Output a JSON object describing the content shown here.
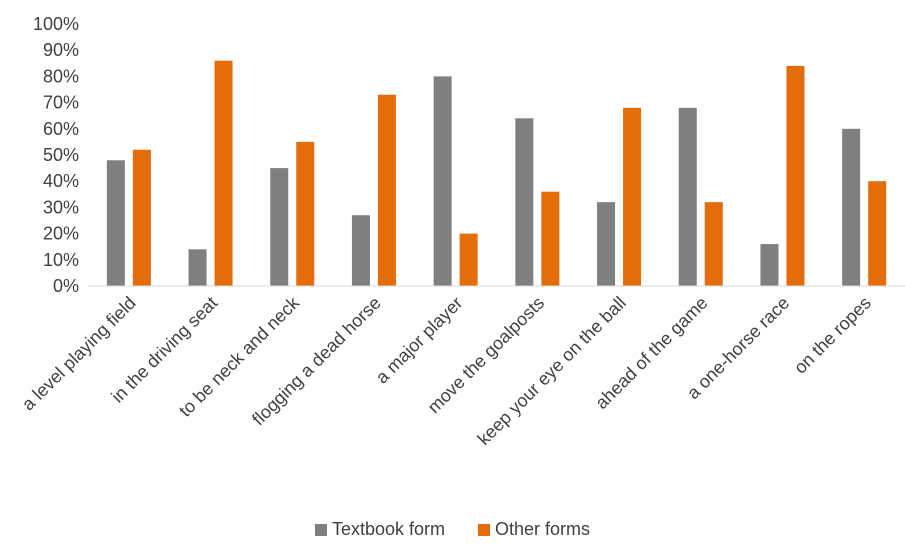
{
  "chart_data": {
    "type": "bar",
    "categories": [
      "a level playing field",
      "in the driving seat",
      "to be neck and neck",
      "flogging a dead horse",
      "a major player",
      "move the goalposts",
      "keep your eye on the ball",
      "ahead of the game",
      "a one-horse race",
      "on the ropes"
    ],
    "series": [
      {
        "name": "Textbook form",
        "color": "#7f7f7f",
        "values": [
          48,
          14,
          45,
          27,
          80,
          64,
          32,
          68,
          16,
          60
        ]
      },
      {
        "name": "Other forms",
        "color": "#e46c0a",
        "values": [
          52,
          86,
          55,
          73,
          20,
          36,
          68,
          32,
          84,
          40
        ]
      }
    ],
    "ylim": [
      0,
      100
    ],
    "yticks": [
      "0%",
      "10%",
      "20%",
      "30%",
      "40%",
      "50%",
      "60%",
      "70%",
      "80%",
      "90%",
      "100%"
    ],
    "grid": false,
    "legend_position": "bottom",
    "title": "",
    "xlabel": "",
    "ylabel": ""
  }
}
